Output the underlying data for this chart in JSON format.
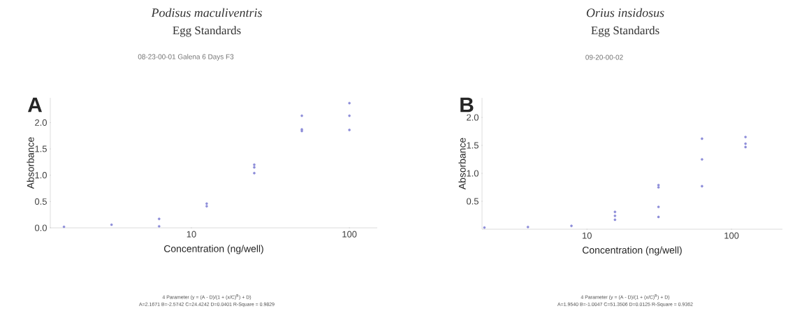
{
  "chart_data": [
    {
      "type": "scatter",
      "title": "*Podisus maculiventris*",
      "subtitle": "Egg Standards",
      "xlabel": "Concentration (ng/well)",
      "ylabel": "Absorbance",
      "log": "x",
      "marker": "circle",
      "annotations": [
        "A",
        "08-23-00-01 Galena 6 Days F3",
        "4 Parameter (y = (A - D)/(1 + (x/C)$^{B}$) + D)",
        "A=2.1671 B=-2.5742 C=24.4242 D=0.0401 R-Square = 0.9829"
      ],
      "x": [
        100,
        100,
        100,
        50,
        50,
        50,
        25,
        25,
        25,
        12.5,
        12.5,
        6.25,
        6.25,
        3.125,
        1.5625
      ],
      "values": [
        2.37,
        2.13,
        1.86,
        2.13,
        1.87,
        1.84,
        1.2,
        1.15,
        1.04,
        0.46,
        0.41,
        0.17,
        0.03,
        0.06,
        0.02
      ],
      "color": "#8c8cd8",
      "xlim": [
        1.28,
        150
      ],
      "ylim": [
        0,
        2.47
      ],
      "xticks": [
        10,
        100
      ],
      "yticks": [
        {
          "value": 0,
          "label": "0.0"
        },
        {
          "value": 0.5,
          "label": "0.5"
        },
        {
          "value": 1,
          "label": "1.0"
        },
        {
          "value": 1.5,
          "label": "1.5"
        },
        {
          "value": 2,
          "label": "2.0"
        }
      ],
      "grid": false
    },
    {
      "type": "scatter",
      "title": "*Orius insidosus*",
      "subtitle": "Egg Standards",
      "xlabel": "Concentration (ng/well)",
      "ylabel": "Absorbance",
      "log": "x",
      "marker": "circle",
      "annotations": [
        "B",
        "09-20-00-02",
        "4 Parameter (y = (A - D)/(1 + (x/C)$^{B}$) + D)",
        "A=1.9540 B=-1.0047 C=51.3506 D=0.0125 R-Square = 0.9362"
      ],
      "x": [
        125,
        125,
        125,
        62.5,
        62.5,
        62.5,
        31.25,
        31.25,
        31.25,
        31.25,
        15.625,
        15.625,
        15.625,
        7.8125,
        3.90625,
        1.953125
      ],
      "values": [
        1.65,
        1.53,
        1.47,
        1.62,
        1.25,
        0.77,
        0.79,
        0.75,
        0.4,
        0.22,
        0.31,
        0.24,
        0.17,
        0.06,
        0.04,
        0.03
      ],
      "color": "#8c8cd8",
      "xlim": [
        1.88,
        225
      ],
      "ylim": [
        0,
        2.35
      ],
      "xticks": [
        10,
        100
      ],
      "yticks": [
        {
          "value": 0.5,
          "label": "0.5"
        },
        {
          "value": 1.0,
          "label": "1.0"
        },
        {
          "value": 1.5,
          "label": "1.5"
        },
        {
          "value": 2.0,
          "label": "2.0"
        }
      ],
      "grid": false
    }
  ]
}
